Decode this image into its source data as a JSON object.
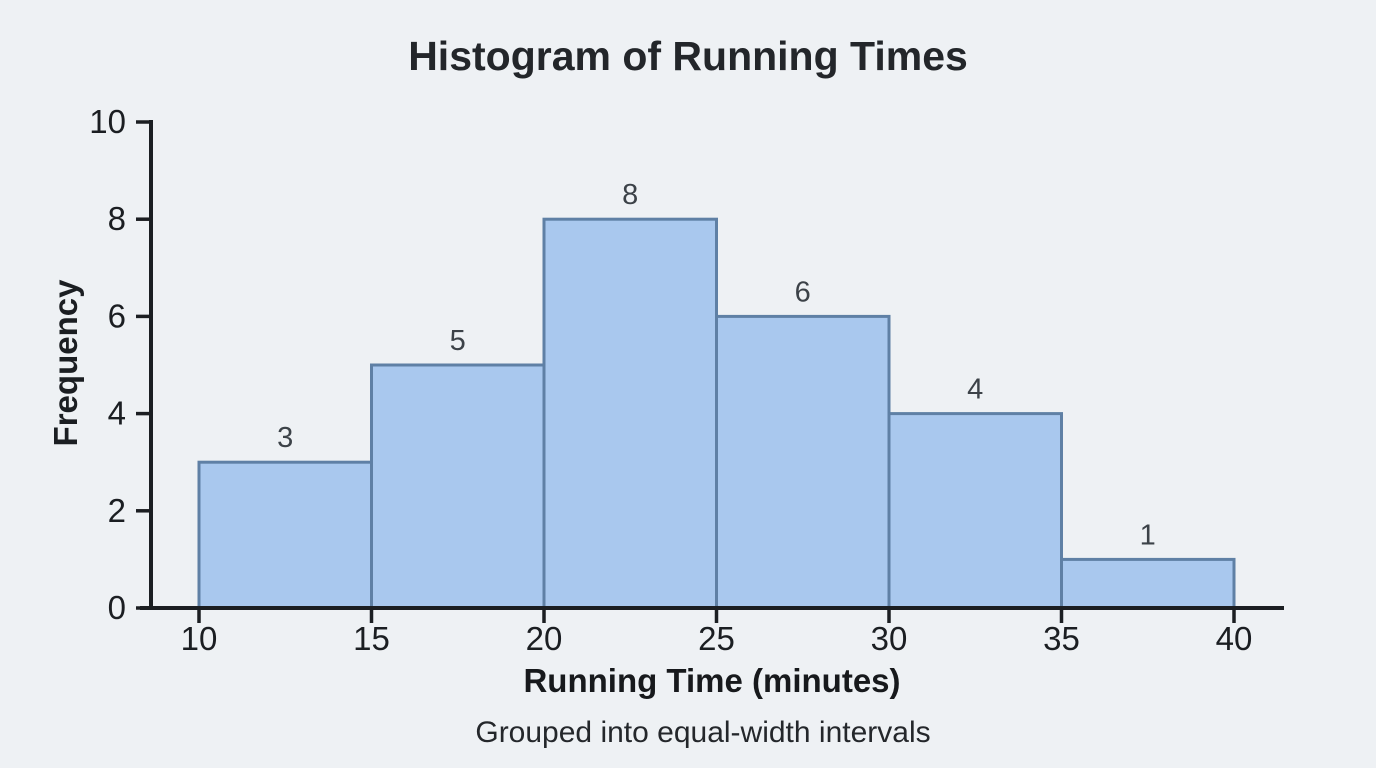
{
  "page": {
    "background_color": "#eef1f4"
  },
  "chart_data": {
    "type": "bar",
    "variant": "histogram",
    "title": "Histogram of Running Times",
    "xlabel": "Running Time (minutes)",
    "ylabel": "Frequency",
    "caption": "Grouped into equal-width intervals",
    "bin_edges": [
      10,
      15,
      20,
      25,
      30,
      35,
      40
    ],
    "bin_labels": [
      "10-15",
      "15-20",
      "20-25",
      "25-30",
      "30-35",
      "35-40"
    ],
    "values": [
      3,
      5,
      8,
      6,
      4,
      1
    ],
    "x_ticks": [
      10,
      15,
      20,
      25,
      30,
      35,
      40
    ],
    "y_ticks": [
      0,
      2,
      4,
      6,
      8,
      10
    ],
    "xlim": [
      10,
      40
    ],
    "ylim": [
      0,
      10
    ],
    "grid": false,
    "legend": null,
    "colors": {
      "background": "#eef1f4",
      "bar_fill": "#a9c8ee",
      "bar_border": "#5f80a5",
      "axis": "#1b1e22",
      "tick_label": "#1b1e22",
      "value_label": "#3c4248",
      "title": "#23262a",
      "xlabel": "#17191c",
      "caption": "#24272b"
    }
  }
}
